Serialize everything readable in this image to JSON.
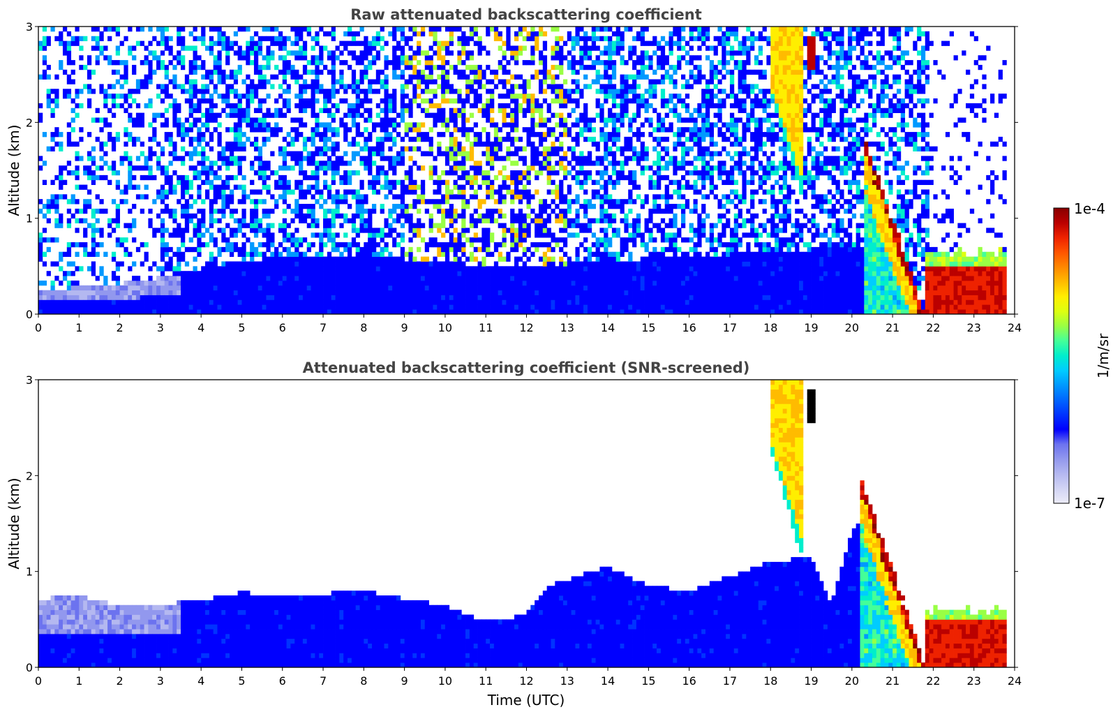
{
  "figure": {
    "colorbar": {
      "label": "1/m/sr",
      "top_label": "1e-4",
      "bottom_label": "1e-7",
      "log_range": [
        -7,
        -4
      ],
      "colors": [
        "#ececf8",
        "#d2d4f4",
        "#b4b8f0",
        "#9298ee",
        "#6c73ef",
        "#0000ff",
        "#0033ff",
        "#0066ff",
        "#0099ff",
        "#00ccff",
        "#00eecc",
        "#44ff99",
        "#99ff44",
        "#ddff11",
        "#ffee00",
        "#ffbb00",
        "#ff8800",
        "#ff5500",
        "#ee2200",
        "#bb0000",
        "#880000"
      ]
    }
  },
  "chart_data": [
    {
      "type": "heatmap",
      "title": "Raw attenuated backscattering coefficient",
      "xlabel": "",
      "ylabel": "Altitude (km)",
      "xlim": [
        0,
        24
      ],
      "ylim": [
        0,
        3
      ],
      "x_ticks": [
        "0",
        "1",
        "2",
        "3",
        "4",
        "5",
        "6",
        "7",
        "8",
        "9",
        "10",
        "11",
        "12",
        "13",
        "14",
        "15",
        "16",
        "17",
        "18",
        "19",
        "20",
        "21",
        "22",
        "23",
        "24"
      ],
      "y_ticks": [
        "0",
        "1",
        "2",
        "3"
      ],
      "features": {
        "boundary_layer_top_km": [
          [
            0,
            0.25
          ],
          [
            1,
            0.28
          ],
          [
            2,
            0.32
          ],
          [
            3,
            0.38
          ],
          [
            4,
            0.48
          ],
          [
            5,
            0.55
          ],
          [
            6,
            0.6
          ],
          [
            8,
            0.6
          ],
          [
            10,
            0.55
          ],
          [
            11,
            0.5
          ],
          [
            12,
            0.5
          ],
          [
            14,
            0.55
          ],
          [
            16,
            0.6
          ],
          [
            18,
            0.65
          ],
          [
            20,
            0.7
          ],
          [
            20.3,
            0.7
          ]
        ],
        "noise_level": "dense scattered noise up to 3 km, increasing in intensity 9-13 UTC",
        "cirrus_band": {
          "time_utc": [
            18.0,
            18.8
          ],
          "base_km": [
            2.3,
            1.2
          ],
          "top_km": 3.0
        },
        "cloud_streak": {
          "time_utc": [
            18.95,
            19.05
          ],
          "altitude_km": [
            2.55,
            2.9
          ]
        },
        "descending_layer": {
          "time_utc": [
            20.3,
            21.8
          ],
          "top_km": [
            1.85,
            0.0
          ]
        },
        "low_cloud": {
          "time_utc": [
            21.8,
            23.8
          ],
          "top_km": 0.65,
          "base_km": 0.0
        }
      }
    },
    {
      "type": "heatmap",
      "title": "Attenuated backscattering coefficient (SNR-screened)",
      "xlabel": "Time (UTC)",
      "ylabel": "Altitude (km)",
      "xlim": [
        0,
        24
      ],
      "ylim": [
        0,
        3
      ],
      "x_ticks": [
        "0",
        "1",
        "2",
        "3",
        "4",
        "5",
        "6",
        "7",
        "8",
        "9",
        "10",
        "11",
        "12",
        "13",
        "14",
        "15",
        "16",
        "17",
        "18",
        "19",
        "20",
        "21",
        "22",
        "23",
        "24"
      ],
      "y_ticks": [
        "0",
        "1",
        "2",
        "3"
      ],
      "features": {
        "screened_boundary_layer_top_km": [
          [
            0,
            0.72
          ],
          [
            1,
            0.74
          ],
          [
            2,
            0.65
          ],
          [
            3,
            0.66
          ],
          [
            4,
            0.7
          ],
          [
            5,
            0.78
          ],
          [
            6,
            0.75
          ],
          [
            7,
            0.77
          ],
          [
            8,
            0.8
          ],
          [
            9,
            0.72
          ],
          [
            10,
            0.65
          ],
          [
            11,
            0.48
          ],
          [
            11.5,
            0.5
          ],
          [
            12,
            0.58
          ],
          [
            12.5,
            0.85
          ],
          [
            13,
            0.9
          ],
          [
            13.5,
            1.0
          ],
          [
            14,
            1.05
          ],
          [
            15,
            0.85
          ],
          [
            16,
            0.8
          ],
          [
            17,
            0.95
          ],
          [
            18,
            1.1
          ],
          [
            19,
            1.15
          ],
          [
            19.5,
            0.65
          ],
          [
            20,
            1.45
          ],
          [
            20.3,
            1.5
          ]
        ],
        "cirrus_band": {
          "time_utc": [
            18.0,
            18.8
          ],
          "base_km": [
            2.3,
            1.1
          ],
          "top_km": 3.0
        },
        "cloud_streak": {
          "time_utc": [
            18.95,
            19.05
          ],
          "altitude_km": [
            2.55,
            2.9
          ]
        },
        "descending_layer": {
          "time_utc": [
            20.2,
            21.8
          ],
          "top_km": [
            2.0,
            0.0
          ]
        },
        "low_cloud": {
          "time_utc": [
            21.8,
            23.8
          ],
          "top_km": 0.6,
          "base_km": 0.0
        }
      }
    }
  ]
}
